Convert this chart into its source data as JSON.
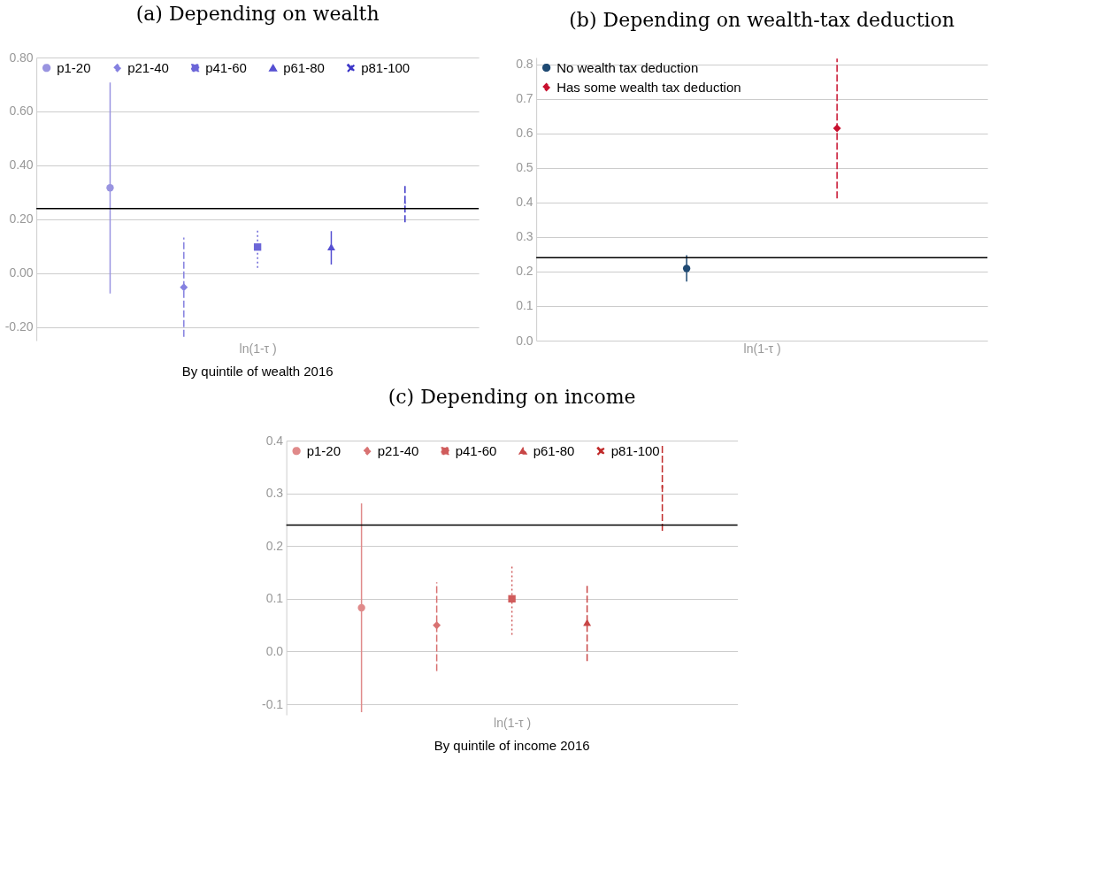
{
  "chart_data": [
    {
      "type": "scatter",
      "title": "(a) Depending on wealth",
      "xlabel": "ln(1-τ )",
      "annotations": [
        "By quintile of wealth 2016"
      ],
      "categories": [
        null,
        null,
        null,
        null,
        null
      ],
      "series": [
        {
          "name": "p1-20",
          "color": "#9994e0",
          "marker": "circle",
          "line_style": "solid",
          "values": [
            0.317,
            null,
            null,
            null,
            null
          ],
          "errors": [
            [
              -0.075,
              0.707
            ],
            null,
            null,
            null,
            null
          ]
        },
        {
          "name": "p21-40",
          "color": "#8581e0",
          "marker": "diamond",
          "line_style": "dashed",
          "values": [
            null,
            -0.052,
            null,
            null,
            null
          ],
          "errors": [
            null,
            [
              -0.236,
              0.132
            ],
            null,
            null,
            null
          ]
        },
        {
          "name": "p41-60",
          "color": "#6c66d8",
          "marker": "square",
          "line_style": "dotted",
          "values": [
            null,
            null,
            0.097,
            null,
            null
          ],
          "errors": [
            null,
            null,
            [
              0.02,
              0.167
            ],
            null,
            null
          ]
        },
        {
          "name": "p61-80",
          "color": "#5650d2",
          "marker": "triangle",
          "line_style": "solid",
          "values": [
            null,
            null,
            null,
            0.097,
            null
          ],
          "errors": [
            null,
            null,
            null,
            [
              0.032,
              0.156
            ],
            null
          ]
        },
        {
          "name": "p81-100",
          "color": "#3c36c8",
          "marker": "cross",
          "line_style": "dashed",
          "values": [
            null,
            null,
            null,
            null,
            0.26
          ],
          "errors": [
            null,
            null,
            null,
            null,
            [
              0.189,
              0.332
            ]
          ]
        }
      ],
      "ylim": [
        -0.25,
        0.8
      ],
      "yticks": [
        {
          "value": -0.2,
          "label": "-0.20"
        },
        {
          "value": 0,
          "label": "0.00"
        },
        {
          "value": 0.2,
          "label": "0.20"
        },
        {
          "value": 0.4,
          "label": "0.40"
        },
        {
          "value": 0.6,
          "label": "0.60"
        },
        {
          "value": 0.8,
          "label": "0.80"
        }
      ],
      "ref_lines": [
        {
          "axis": "y",
          "value": 0.24,
          "color": "#000000"
        }
      ],
      "grid": "y",
      "legend": "top left"
    },
    {
      "type": "scatter",
      "title": "(b) Depending on wealth-tax deduction",
      "xlabel": "ln(1-τ )",
      "categories": [
        null,
        null
      ],
      "series": [
        {
          "name": "No wealth tax deduction",
          "color": "#1f4a73",
          "marker": "circle",
          "line_style": "solid",
          "values": [
            0.209,
            null
          ],
          "errors": [
            [
              0.171,
              0.247
            ],
            null
          ]
        },
        {
          "name": "Has some wealth tax deduction",
          "color": "#c8102e",
          "marker": "diamond",
          "line_style": "dashed",
          "values": [
            null,
            0.615
          ],
          "errors": [
            null,
            [
              0.412,
              0.817
            ]
          ]
        }
      ],
      "ylim": [
        0,
        0.82
      ],
      "yticks": [
        {
          "value": 0,
          "label": "0.0"
        },
        {
          "value": 0.1,
          "label": "0.1"
        },
        {
          "value": 0.2,
          "label": "0.2"
        },
        {
          "value": 0.3,
          "label": "0.3"
        },
        {
          "value": 0.4,
          "label": "0.4"
        },
        {
          "value": 0.5,
          "label": "0.5"
        },
        {
          "value": 0.6,
          "label": "0.6"
        },
        {
          "value": 0.7,
          "label": "0.7"
        },
        {
          "value": 0.8,
          "label": "0.8"
        }
      ],
      "ref_lines": [
        {
          "axis": "y",
          "value": 0.24,
          "color": "#000000"
        }
      ],
      "grid": "y",
      "legend": "top left"
    },
    {
      "type": "scatter",
      "title": "(c) Depending on income",
      "xlabel": "ln(1-τ )",
      "annotations": [
        "By quintile of income 2016"
      ],
      "categories": [
        null,
        null,
        null,
        null,
        null
      ],
      "series": [
        {
          "name": "p1-20",
          "color": "#e08a8a",
          "marker": "circle",
          "line_style": "solid",
          "values": [
            0.083,
            null,
            null,
            null,
            null
          ],
          "errors": [
            [
              -0.115,
              0.281
            ],
            null,
            null,
            null,
            null
          ]
        },
        {
          "name": "p21-40",
          "color": "#d87272",
          "marker": "diamond",
          "line_style": "dashed",
          "values": [
            null,
            0.05,
            null,
            null,
            null
          ],
          "errors": [
            null,
            [
              -0.037,
              0.131
            ],
            null,
            null,
            null
          ]
        },
        {
          "name": "p41-60",
          "color": "#d05c5c",
          "marker": "square",
          "line_style": "dotted",
          "values": [
            null,
            null,
            0.1,
            null,
            null
          ],
          "errors": [
            null,
            null,
            [
              0.032,
              0.166
            ],
            null,
            null
          ]
        },
        {
          "name": "p61-80",
          "color": "#c84646",
          "marker": "triangle",
          "line_style": "dashed",
          "values": [
            null,
            null,
            null,
            0.055,
            null
          ],
          "errors": [
            null,
            null,
            null,
            [
              -0.018,
              0.126
            ],
            null
          ]
        },
        {
          "name": "p81-100",
          "color": "#c02a2a",
          "marker": "cross",
          "line_style": "dashed",
          "values": [
            null,
            null,
            null,
            null,
            0.312
          ],
          "errors": [
            null,
            null,
            null,
            null,
            [
              0.229,
              0.395
            ]
          ]
        }
      ],
      "ylim": [
        -0.12,
        0.4
      ],
      "yticks": [
        {
          "value": -0.1,
          "label": "-0.1"
        },
        {
          "value": 0,
          "label": "0.0"
        },
        {
          "value": 0.1,
          "label": "0.1"
        },
        {
          "value": 0.2,
          "label": "0.2"
        },
        {
          "value": 0.3,
          "label": "0.3"
        },
        {
          "value": 0.4,
          "label": "0.4"
        }
      ],
      "ref_lines": [
        {
          "axis": "y",
          "value": 0.24,
          "color": "#000000"
        }
      ],
      "grid": "y",
      "legend": "top left"
    }
  ]
}
